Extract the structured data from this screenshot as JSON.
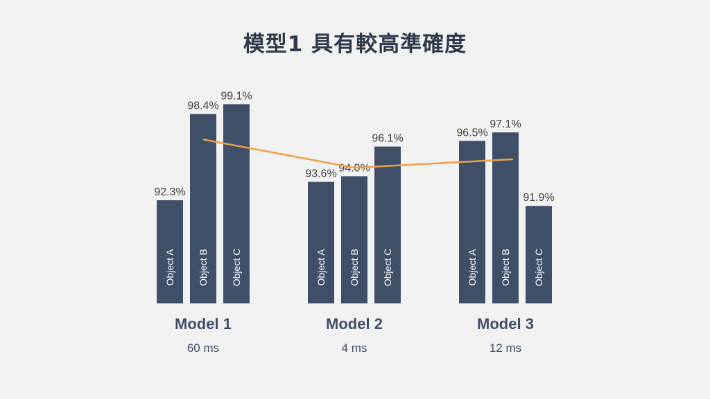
{
  "title": "模型1 具有較高準確度",
  "colors": {
    "bar": "#404f68",
    "line": "#f0a04a",
    "value_label": "#404040",
    "group_label": "#404f68",
    "latency": "#404f68",
    "background": "#f2f2f2"
  },
  "chart_data": {
    "type": "bar",
    "title": "模型1 具有較高準確度",
    "unit": "%",
    "y_baseline": 85,
    "groups": [
      {
        "name": "Model 1",
        "latency": "60 ms",
        "bars": [
          {
            "label": "Object A",
            "value": 92.3,
            "text": "92.3%"
          },
          {
            "label": "Object B",
            "value": 98.4,
            "text": "98.4%"
          },
          {
            "label": "Object C",
            "value": 99.1,
            "text": "99.1%"
          }
        ]
      },
      {
        "name": "Model 2",
        "latency": "4 ms",
        "bars": [
          {
            "label": "Object A",
            "value": 93.6,
            "text": "93.6%"
          },
          {
            "label": "Object B",
            "value": 94.0,
            "text": "94.0%"
          },
          {
            "label": "Object C",
            "value": 96.1,
            "text": "96.1%"
          }
        ]
      },
      {
        "name": "Model 3",
        "latency": "12 ms",
        "bars": [
          {
            "label": "Object A",
            "value": 96.5,
            "text": "96.5%"
          },
          {
            "label": "Object B",
            "value": 97.1,
            "text": "97.1%"
          },
          {
            "label": "Object C",
            "value": 91.9,
            "text": "91.9%"
          }
        ]
      }
    ],
    "average_line": {
      "values": [
        96.6,
        94.6,
        95.2
      ]
    }
  }
}
